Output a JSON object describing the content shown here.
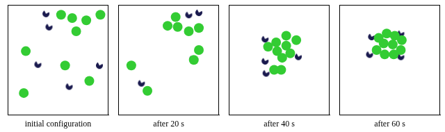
{
  "chart_data": [
    {
      "type": "scatter",
      "xlabel": "initial configuration",
      "xlim": [
        0,
        1
      ],
      "ylim": [
        0,
        1
      ],
      "tick_labels": false,
      "grid": false,
      "series": [
        {
          "color": "#33cc33",
          "marker": "circle",
          "x": [
            0.53,
            0.64,
            0.78,
            0.92,
            0.68,
            0.18,
            0.57,
            0.81,
            0.16
          ],
          "values": [
            0.91,
            0.88,
            0.86,
            0.91,
            0.76,
            0.58,
            0.45,
            0.31,
            0.2
          ]
        },
        {
          "color": "#1a1a4e",
          "marker": "pacman",
          "x": [
            0.38,
            0.41,
            0.3,
            0.91,
            0.61
          ],
          "values": [
            0.92,
            0.8,
            0.46,
            0.45,
            0.26
          ]
        }
      ]
    },
    {
      "type": "scatter",
      "xlabel": "after 20 s",
      "xlim": [
        0,
        1
      ],
      "ylim": [
        0,
        1
      ],
      "tick_labels": false,
      "grid": false,
      "series": [
        {
          "color": "#33cc33",
          "marker": "circle",
          "x": [
            0.57,
            0.49,
            0.59,
            0.7,
            0.8,
            0.8,
            0.75,
            0.13,
            0.29
          ],
          "values": [
            0.89,
            0.81,
            0.8,
            0.76,
            0.79,
            0.59,
            0.5,
            0.45,
            0.22
          ]
        },
        {
          "color": "#1a1a4e",
          "marker": "pacman",
          "x": [
            0.7,
            0.8,
            0.74,
            0.23
          ],
          "values": [
            0.91,
            0.93,
            0.51,
            0.29
          ]
        }
      ]
    },
    {
      "type": "scatter",
      "xlabel": "after 40 s",
      "xlim": [
        0,
        1
      ],
      "ylim": [
        0,
        1
      ],
      "tick_labels": false,
      "grid": false,
      "series": [
        {
          "color": "#33cc33",
          "marker": "circle",
          "x": [
            0.57,
            0.47,
            0.39,
            0.48,
            0.57,
            0.67,
            0.61,
            0.53,
            0.45,
            0.52
          ],
          "values": [
            0.72,
            0.66,
            0.62,
            0.58,
            0.63,
            0.68,
            0.56,
            0.52,
            0.41,
            0.41
          ]
        },
        {
          "color": "#1a1a4e",
          "marker": "pacman",
          "x": [
            0.36,
            0.36,
            0.37,
            0.69
          ],
          "values": [
            0.69,
            0.49,
            0.38,
            0.53
          ]
        }
      ]
    },
    {
      "type": "scatter",
      "xlabel": "after 60 s",
      "xlim": [
        0,
        1
      ],
      "ylim": [
        0,
        1
      ],
      "tick_labels": false,
      "grid": false,
      "series": [
        {
          "color": "#33cc33",
          "marker": "circle",
          "x": [
            0.47,
            0.39,
            0.55,
            0.62,
            0.44,
            0.53,
            0.61,
            0.37,
            0.45,
            0.54
          ],
          "values": [
            0.74,
            0.7,
            0.72,
            0.68,
            0.65,
            0.64,
            0.59,
            0.59,
            0.55,
            0.55
          ]
        },
        {
          "color": "#1a1a4e",
          "marker": "pacman",
          "x": [
            0.32,
            0.3,
            0.61,
            0.61
          ],
          "values": [
            0.71,
            0.55,
            0.53,
            0.74
          ]
        }
      ]
    }
  ]
}
